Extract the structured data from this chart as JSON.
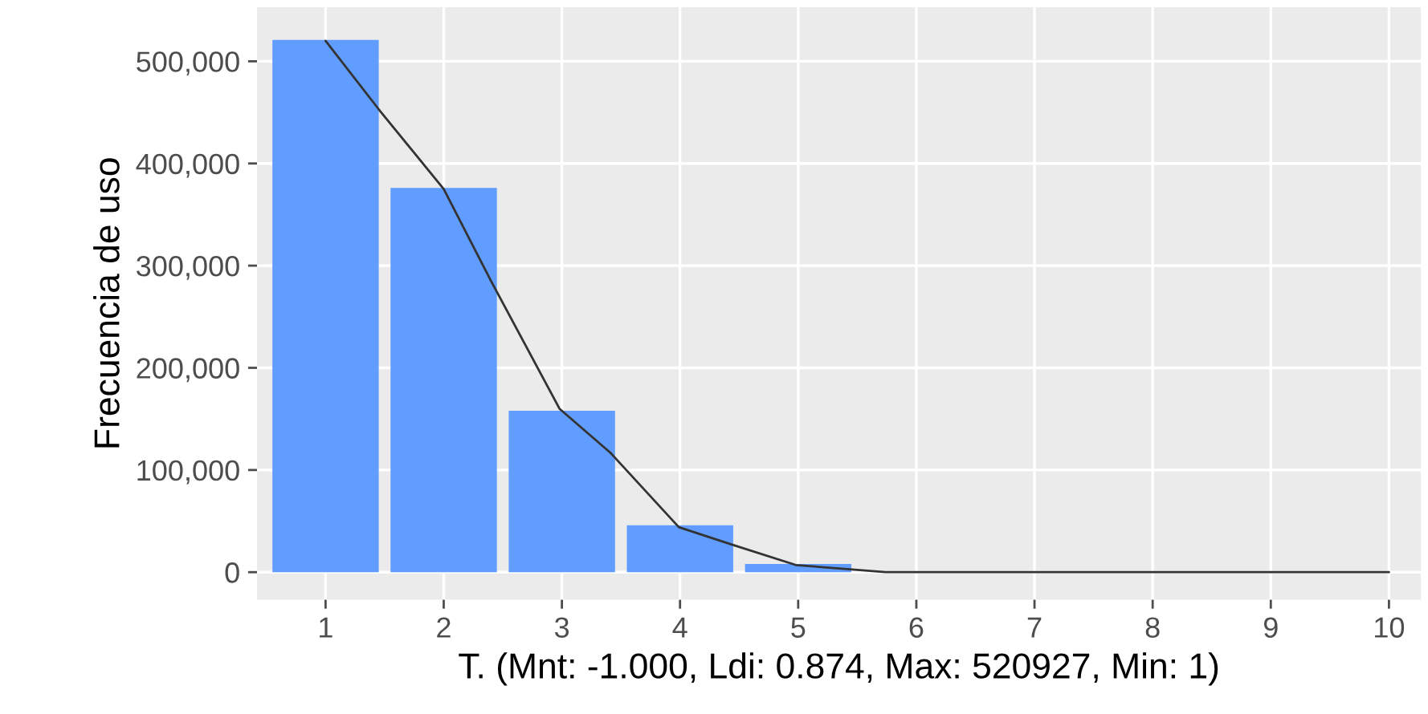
{
  "chart_data": {
    "type": "bar",
    "xlabel": "T. (Mnt: -1.000, Ldi: 0.874, Max: 520927, Min: 1)",
    "ylabel": "Frecuencia de uso",
    "x": [
      1,
      2,
      3,
      4,
      5
    ],
    "series": [
      {
        "color": "#619cff",
        "values": [
          521000,
          376000,
          158000,
          46000,
          8000
        ]
      },
      {
        "type": "line",
        "color": "#333333",
        "x": [
          1,
          1.45,
          2,
          2.4,
          2.98,
          3.41,
          3.99,
          4.44,
          4.98,
          5.74,
          10
        ],
        "values": [
          520000,
          453000,
          375000,
          285000,
          160000,
          117000,
          44000,
          27000,
          7000,
          0,
          0
        ]
      }
    ],
    "xlim": [
      0.42,
      10.27
    ],
    "ylim": [
      -27000,
      553000
    ],
    "xticks": [
      1,
      2,
      3,
      4,
      5,
      6,
      7,
      8,
      9,
      10
    ],
    "yticks": [
      {
        "value": 0,
        "label": "0"
      },
      {
        "value": 100000,
        "label": "100,000"
      },
      {
        "value": 200000,
        "label": "200,000"
      },
      {
        "value": 300000,
        "label": "300,000"
      },
      {
        "value": 400000,
        "label": "400,000"
      },
      {
        "value": 500000,
        "label": "500,000"
      }
    ],
    "grid": true
  }
}
